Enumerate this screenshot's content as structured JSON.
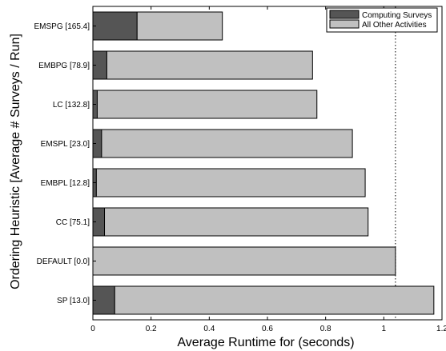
{
  "chart_data": {
    "type": "bar",
    "orientation": "horizontal",
    "stacked": true,
    "xlabel": "Average Runtime for (seconds)",
    "ylabel": "Ordering Heuristic [Average # Surveys / Run]",
    "xlim": [
      0,
      1.2
    ],
    "xticks": [
      "0",
      "0.2",
      "0.4",
      "0.6",
      "0.8",
      "1",
      "1.2"
    ],
    "categories": [
      "EMSPG [165.4]",
      "EMBPG [78.9]",
      "LC [132.8]",
      "EMSPL [23.0]",
      "EMBPL [12.8]",
      "CC [75.1]",
      "DEFAULT [0.0]",
      "SP [13.0]"
    ],
    "series": [
      {
        "name": "Computing Surveys",
        "color": "#555555",
        "values": [
          0.152,
          0.048,
          0.015,
          0.03,
          0.012,
          0.04,
          0.0,
          0.075
        ]
      },
      {
        "name": "All Other Activities",
        "color": "#c0c0c0",
        "values": [
          0.293,
          0.707,
          0.755,
          0.862,
          0.924,
          0.906,
          1.04,
          1.097
        ]
      }
    ],
    "reference_line": {
      "x": 1.04,
      "style": "dotted"
    },
    "legend_position": "top-right",
    "grid": false
  }
}
